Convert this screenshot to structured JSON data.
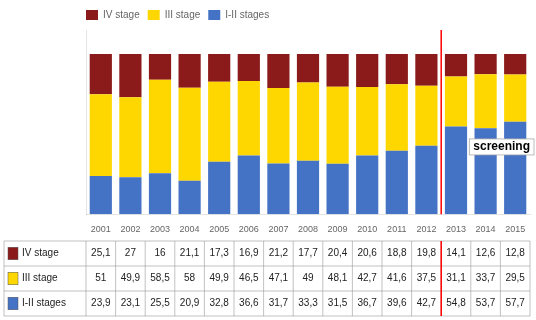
{
  "chart_data": {
    "type": "bar",
    "stacked": true,
    "categories": [
      "2001",
      "2002",
      "2003",
      "2004",
      "2005",
      "2006",
      "2007",
      "2008",
      "2009",
      "2010",
      "2011",
      "2012",
      "2013",
      "2014",
      "2015"
    ],
    "series": [
      {
        "name": "I-II stages",
        "color": "#4472C4",
        "values": [
          23.9,
          23.1,
          25.5,
          20.9,
          32.8,
          36.6,
          31.7,
          33.3,
          31.5,
          36.7,
          39.6,
          42.7,
          54.8,
          53.7,
          57.7
        ],
        "value_labels": [
          "23,9",
          "23,1",
          "25,5",
          "20,9",
          "32,8",
          "36,6",
          "31,7",
          "33,3",
          "31,5",
          "36,7",
          "39,6",
          "42,7",
          "54,8",
          "53,7",
          "57,7"
        ]
      },
      {
        "name": "III stage",
        "color": "#FFD700",
        "values": [
          51,
          49.9,
          58.5,
          58,
          49.9,
          46.5,
          47.1,
          49,
          48.1,
          42.7,
          41.6,
          37.5,
          31.1,
          33.7,
          29.5
        ],
        "value_labels": [
          "51",
          "49,9",
          "58,5",
          "58",
          "49,9",
          "46,5",
          "47,1",
          "49",
          "48,1",
          "42,7",
          "41,6",
          "37,5",
          "31,1",
          "33,7",
          "29,5"
        ]
      },
      {
        "name": "IV stage",
        "color": "#8B1A1A",
        "values": [
          25.1,
          27,
          16,
          21.1,
          17.3,
          16.9,
          21.2,
          17.7,
          20.4,
          20.6,
          18.8,
          19.8,
          14.1,
          12.6,
          12.8
        ],
        "value_labels": [
          "25,1",
          "27",
          "16",
          "21,1",
          "17,3",
          "16,9",
          "21,2",
          "17,7",
          "20,4",
          "20,6",
          "18,8",
          "19,8",
          "14,1",
          "12,6",
          "12,8"
        ]
      }
    ],
    "ylim": [
      0,
      115
    ],
    "tick_labels": "x",
    "grid": false,
    "legend": "upper left",
    "annotations": [
      {
        "text": "screening",
        "x": "2014",
        "y": 42
      }
    ],
    "vline": {
      "after": "2012",
      "color": "red"
    }
  }
}
